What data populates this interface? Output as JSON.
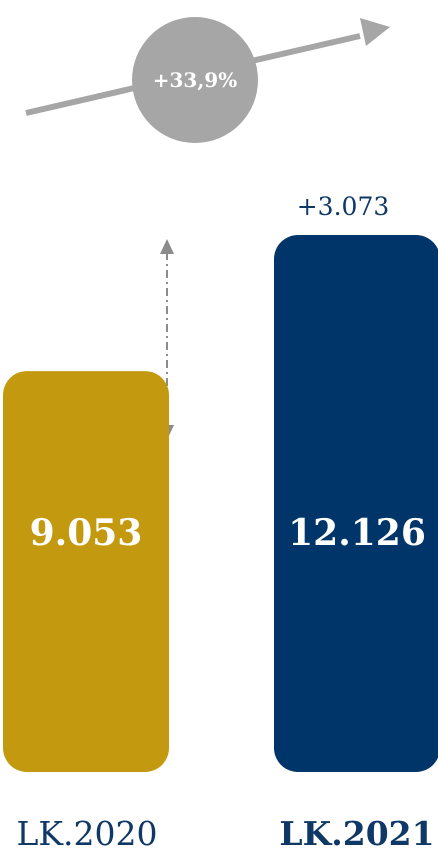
{
  "chart_data": {
    "type": "bar",
    "categories": [
      "LK.2020",
      "LK.2021"
    ],
    "values": [
      9053,
      12126
    ],
    "value_labels": [
      "9.053",
      "12.126"
    ],
    "bar_colors": [
      "#c39a0f",
      "#00356a"
    ],
    "delta_label": "+3.073",
    "growth_label": "+33,9%",
    "growth_circle_color": "#a6a6a6",
    "arrow_color": "#a6a6a6",
    "text_color": "#0f3866",
    "emphasized_category": "LK.2021",
    "ylim": [
      0,
      12126
    ]
  }
}
